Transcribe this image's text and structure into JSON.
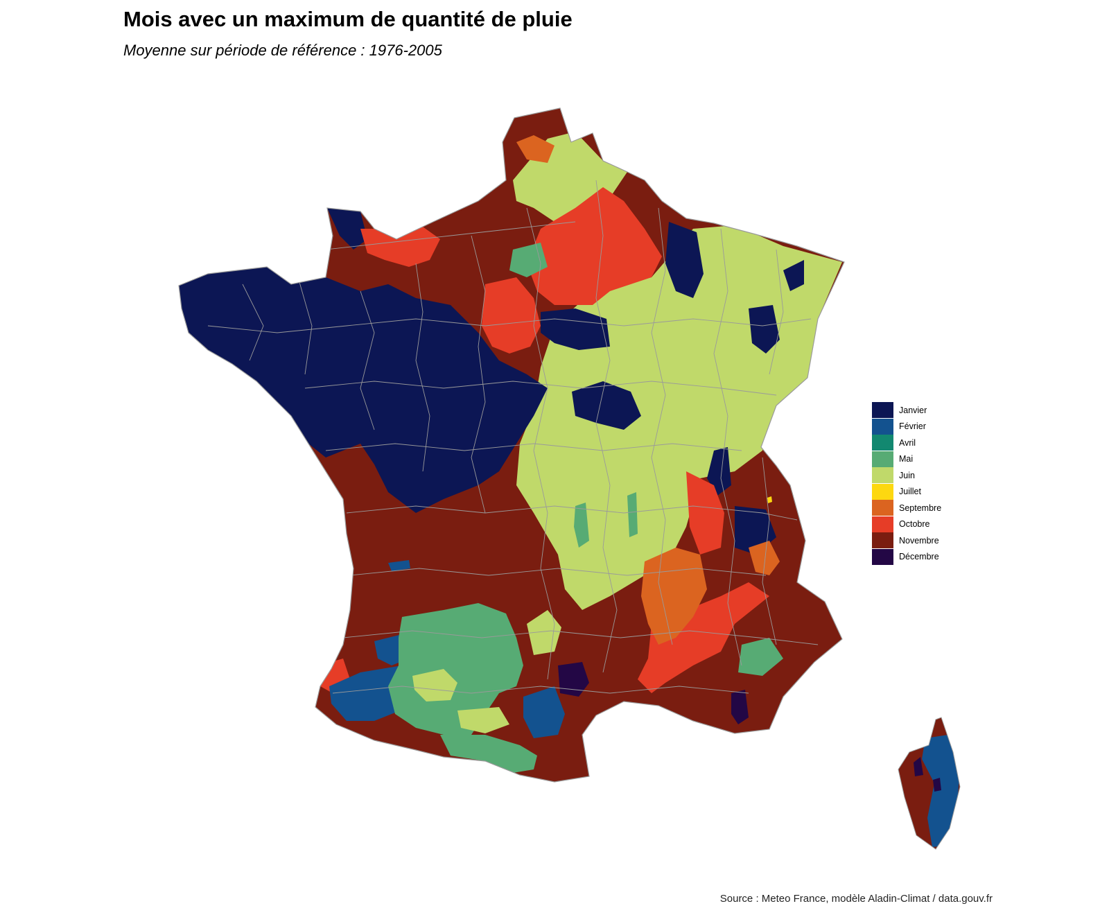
{
  "title": "Mois avec un maximum de quantité de pluie",
  "subtitle": "Moyenne sur période de référence : 1976-2005",
  "source": "Source : Meteo France, modèle Aladin-Climat / data.gouv.fr",
  "legend": [
    {
      "label": "Janvier",
      "color": "#0c1654"
    },
    {
      "label": "Février",
      "color": "#13528f"
    },
    {
      "label": "Avril",
      "color": "#128870"
    },
    {
      "label": "Mai",
      "color": "#57ab74"
    },
    {
      "label": "Juin",
      "color": "#c0d96a"
    },
    {
      "label": "Juillet",
      "color": "#fdd810"
    },
    {
      "label": "Septembre",
      "color": "#db6420"
    },
    {
      "label": "Octobre",
      "color": "#e63d27"
    },
    {
      "label": "Novembre",
      "color": "#7a1d10"
    },
    {
      "label": "Décembre",
      "color": "#230745"
    }
  ]
}
